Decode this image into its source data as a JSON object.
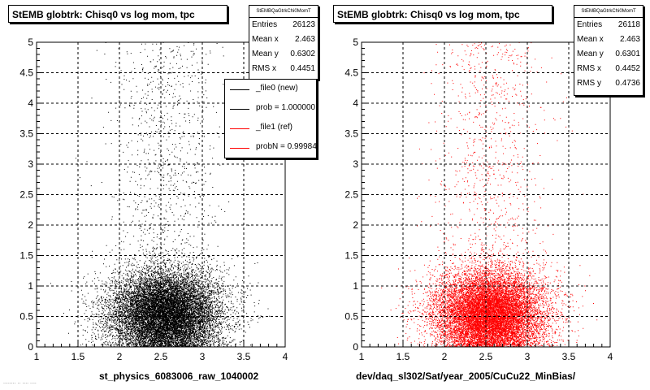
{
  "chart_data": [
    {
      "type": "scatter",
      "title": "StEMB globtrk: Chisq0 vs log mom, tpc",
      "xlabel": "st_physics_6083006_raw_1040002",
      "ylabel": "",
      "xlim": [
        1,
        4
      ],
      "ylim": [
        0,
        5
      ],
      "x_ticks": [
        "1",
        "1.5",
        "2",
        "2.5",
        "3",
        "3.5",
        "4"
      ],
      "y_ticks": [
        "0",
        "0.5",
        "1",
        "1.5",
        "2",
        "2.5",
        "3",
        "3.5",
        "4",
        "4.5",
        "5"
      ],
      "grid": true,
      "marker_color": "#000000",
      "distribution": {
        "x_center": 2.55,
        "x_spread": 0.33,
        "y_center": 0.55,
        "y_spread": 0.35
      },
      "stats": {
        "header": "StEMBQaGtrkChi0MomT",
        "rows": [
          {
            "label": "Entries",
            "value": "26123"
          },
          {
            "label": "Mean x",
            "value": "2.463"
          },
          {
            "label": "Mean y",
            "value": "0.6302"
          },
          {
            "label": "RMS x",
            "value": "0.4451"
          }
        ]
      },
      "legend": {
        "placement": "top-right",
        "entries": [
          {
            "text": "_file0 (new)",
            "color": "#000000"
          },
          {
            "text": "prob = 1.000000",
            "color": "#000000"
          },
          {
            "text": "_file1 (ref)",
            "color": "#ff0000"
          },
          {
            "text": "probN = 0.999840",
            "color": "#ff0000"
          }
        ]
      }
    },
    {
      "type": "scatter",
      "title": "StEMB globtrk: Chisq0 vs log mom, tpc",
      "xlabel": "dev/daq_sl302/Sat/year_2005/CuCu22_MinBias/",
      "ylabel": "",
      "xlim": [
        1,
        4
      ],
      "ylim": [
        0,
        5
      ],
      "x_ticks": [
        "1",
        "1.5",
        "2",
        "2.5",
        "3",
        "3.5",
        "4"
      ],
      "y_ticks": [
        "0",
        "0.5",
        "1",
        "1.5",
        "2",
        "2.5",
        "3",
        "3.5",
        "4",
        "4.5",
        "5"
      ],
      "grid": true,
      "marker_color": "#ff0000",
      "distribution": {
        "x_center": 2.55,
        "x_spread": 0.33,
        "y_center": 0.55,
        "y_spread": 0.35
      },
      "stats": {
        "header": "StEMBQaGtrkChi0MomT",
        "rows": [
          {
            "label": "Entries",
            "value": "26118"
          },
          {
            "label": "Mean x",
            "value": "2.463"
          },
          {
            "label": "Mean y",
            "value": "0.6301"
          },
          {
            "label": "RMS x",
            "value": "0.4452"
          },
          {
            "label": "RMS y",
            "value": "0.4736"
          }
        ]
      }
    }
  ],
  "footnote": "........ .. .... ...."
}
